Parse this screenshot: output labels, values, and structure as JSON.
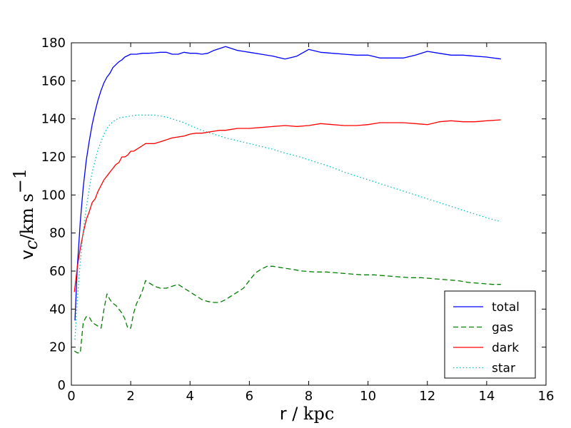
{
  "chart_data": {
    "type": "line",
    "xlim": [
      0,
      16
    ],
    "ylim": [
      0,
      180
    ],
    "xticks": [
      0,
      2,
      4,
      6,
      8,
      10,
      12,
      14,
      16
    ],
    "yticks": [
      0,
      20,
      40,
      60,
      80,
      100,
      120,
      140,
      160,
      180
    ],
    "xlabel": {
      "var": "r / ",
      "unit": "kpc"
    },
    "ylabel": {
      "var": "v",
      "sub": "c",
      "unit": "/km s",
      "sup": "−1"
    },
    "grid": false,
    "legend_position": "lower right",
    "series": [
      {
        "name": "total",
        "color": "#0000ff",
        "dash": "",
        "x": [
          0.12,
          0.2,
          0.3,
          0.4,
          0.5,
          0.6,
          0.7,
          0.8,
          0.9,
          1.0,
          1.1,
          1.2,
          1.3,
          1.4,
          1.5,
          1.6,
          1.7,
          1.8,
          2.0,
          2.2,
          2.4,
          2.6,
          2.8,
          3.0,
          3.2,
          3.4,
          3.6,
          3.8,
          4.0,
          4.2,
          4.4,
          4.6,
          4.8,
          5.0,
          5.2,
          5.4,
          5.6,
          5.8,
          6.0,
          6.4,
          6.8,
          7.2,
          7.6,
          8.0,
          8.4,
          8.8,
          9.2,
          9.6,
          10.0,
          10.4,
          10.8,
          11.2,
          11.6,
          12.0,
          12.4,
          12.8,
          13.2,
          13.6,
          14.0,
          14.48
        ],
        "y": [
          34,
          62,
          86,
          104,
          118,
          128,
          137,
          144,
          150,
          155,
          159,
          162,
          164,
          167,
          168.5,
          170,
          171,
          172.5,
          174,
          174,
          174.5,
          174.5,
          174.7,
          175,
          175,
          174,
          174,
          175,
          174.5,
          174.5,
          174,
          174.5,
          176,
          177,
          178,
          177,
          176,
          175.5,
          175,
          174,
          173,
          171.5,
          173,
          176.5,
          175,
          174.5,
          174,
          173.5,
          173.5,
          172,
          172,
          172,
          173.5,
          175.5,
          174.5,
          173.5,
          173.5,
          173,
          172.5,
          171.5
        ]
      },
      {
        "name": "gas",
        "color": "#008000",
        "dash": "7,4",
        "x": [
          0.1,
          0.2,
          0.3,
          0.4,
          0.5,
          0.6,
          0.7,
          0.8,
          0.9,
          1.0,
          1.1,
          1.2,
          1.3,
          1.4,
          1.5,
          1.6,
          1.7,
          1.8,
          1.9,
          2.0,
          2.1,
          2.2,
          2.3,
          2.4,
          2.5,
          2.6,
          2.8,
          3.0,
          3.2,
          3.4,
          3.6,
          3.8,
          4.0,
          4.2,
          4.4,
          4.6,
          4.8,
          5.0,
          5.2,
          5.4,
          5.6,
          5.8,
          6.0,
          6.2,
          6.4,
          6.6,
          6.8,
          7.0,
          7.4,
          7.8,
          8.2,
          8.6,
          9.0,
          9.4,
          9.8,
          10.2,
          10.6,
          11.0,
          11.4,
          11.8,
          12.2,
          12.6,
          13.0,
          13.4,
          13.8,
          14.2,
          14.48
        ],
        "y": [
          18,
          17,
          17,
          33,
          36,
          36,
          33,
          32,
          31,
          30,
          40,
          48,
          45,
          43,
          42,
          40,
          38,
          35,
          30,
          30,
          38,
          43,
          46,
          50,
          55,
          54,
          52,
          51,
          51,
          52,
          53,
          51,
          49,
          47,
          45,
          44,
          43.5,
          43.5,
          45,
          47,
          49,
          51,
          55,
          59,
          61,
          62.5,
          62.5,
          62,
          61,
          60,
          59.5,
          59.5,
          59,
          58.5,
          58,
          58,
          57.5,
          57,
          56.5,
          56.5,
          56,
          55.5,
          55,
          54,
          53.5,
          53,
          53
        ]
      },
      {
        "name": "dark",
        "color": "#ff0000",
        "dash": "",
        "x": [
          0.1,
          0.2,
          0.3,
          0.4,
          0.5,
          0.6,
          0.7,
          0.8,
          0.9,
          1.0,
          1.1,
          1.2,
          1.3,
          1.4,
          1.5,
          1.6,
          1.7,
          1.8,
          1.9,
          2.0,
          2.1,
          2.2,
          2.3,
          2.4,
          2.5,
          2.6,
          2.8,
          3.0,
          3.2,
          3.4,
          3.6,
          3.8,
          4.0,
          4.2,
          4.4,
          4.6,
          4.8,
          5.0,
          5.2,
          5.4,
          5.6,
          5.8,
          6.0,
          6.4,
          6.8,
          7.2,
          7.6,
          8.0,
          8.4,
          8.8,
          9.2,
          9.6,
          10.0,
          10.4,
          10.8,
          11.2,
          11.6,
          12.0,
          12.4,
          12.8,
          13.2,
          13.6,
          14.0,
          14.48
        ],
        "y": [
          49,
          62,
          72,
          80,
          87,
          91,
          96,
          98,
          102,
          105,
          108,
          110,
          112,
          114,
          116,
          117,
          120,
          120,
          121,
          123,
          123,
          124,
          125,
          126,
          127,
          127,
          127,
          128,
          129,
          130,
          130.5,
          131,
          132,
          132.5,
          132.5,
          133,
          133.5,
          134,
          134,
          134.5,
          135,
          135,
          135,
          135.5,
          136,
          136.5,
          136,
          136.5,
          137.5,
          137,
          136.5,
          136.5,
          137,
          138,
          138,
          138,
          137.5,
          137,
          138.5,
          139,
          138.5,
          138.5,
          139,
          139.5
        ]
      },
      {
        "name": "star",
        "color": "#00bfbf",
        "dash": "1.5,3",
        "x": [
          0.12,
          0.2,
          0.3,
          0.4,
          0.5,
          0.6,
          0.7,
          0.8,
          0.9,
          1.0,
          1.1,
          1.2,
          1.3,
          1.4,
          1.5,
          1.6,
          1.8,
          2.0,
          2.2,
          2.4,
          2.6,
          2.8,
          3.0,
          3.2,
          3.4,
          3.6,
          3.8,
          4.0,
          4.4,
          4.8,
          5.2,
          5.6,
          6.0,
          6.4,
          6.8,
          7.2,
          7.6,
          8.0,
          8.4,
          8.8,
          9.2,
          9.6,
          10.0,
          10.4,
          10.8,
          11.2,
          11.6,
          12.0,
          12.4,
          12.8,
          13.2,
          13.6,
          14.0,
          14.48
        ],
        "y": [
          24,
          45,
          65,
          81,
          93,
          103,
          112,
          118,
          124,
          128,
          132,
          135,
          137,
          138.5,
          139.5,
          140.5,
          141,
          141.5,
          142,
          142,
          142,
          142,
          141.5,
          141,
          140,
          139,
          138,
          136.5,
          134,
          132,
          130,
          128.5,
          127,
          125.5,
          124,
          122,
          120.5,
          118.5,
          116.5,
          114.5,
          112,
          110,
          108,
          106,
          104,
          102,
          100,
          98,
          96,
          94,
          92,
          90,
          88,
          86
        ]
      }
    ]
  }
}
